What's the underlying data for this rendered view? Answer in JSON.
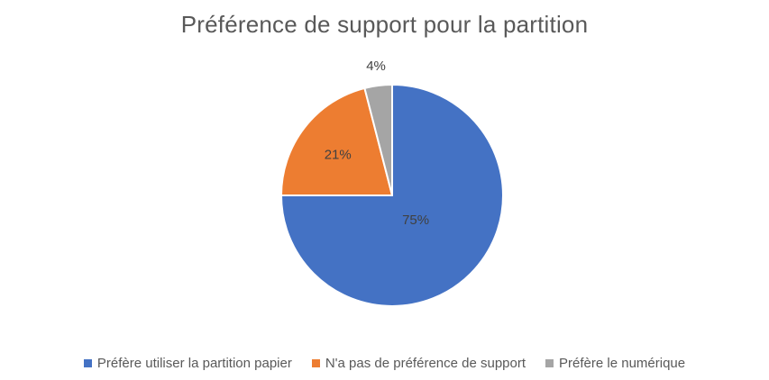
{
  "chart_data": {
    "type": "pie",
    "title": "Préférence de support pour la partition",
    "slices": [
      {
        "label": "Préfère utiliser la partition papier",
        "value": 75,
        "data_label": "75%",
        "color": "#4472C4"
      },
      {
        "label": "N'a pas de préférence de support",
        "value": 21,
        "data_label": "21%",
        "color": "#ED7D31"
      },
      {
        "label": "Préfère le numérique",
        "value": 4,
        "data_label": "4%",
        "color": "#A5A5A5"
      }
    ],
    "legend_position": "bottom"
  }
}
